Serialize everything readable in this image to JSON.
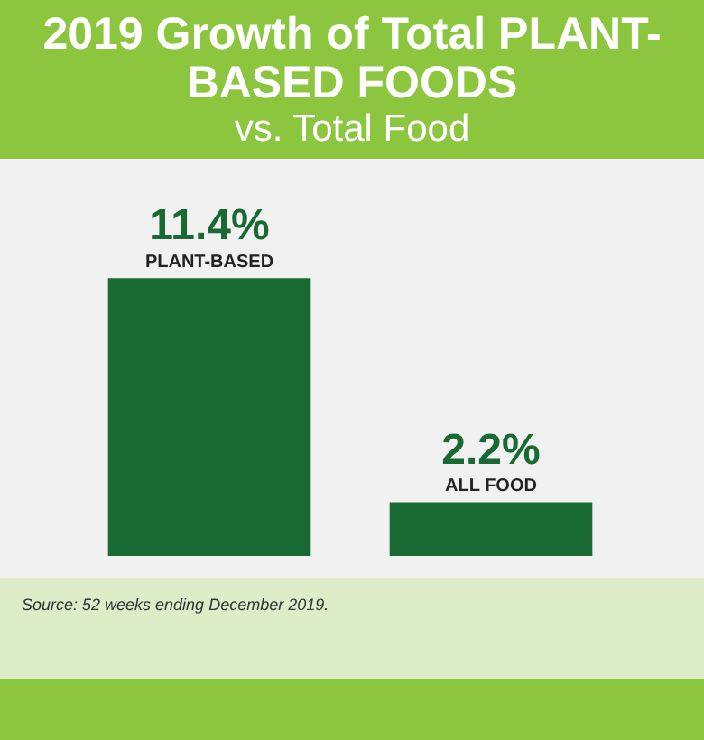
{
  "chart_data": {
    "type": "bar",
    "title": "2019 Growth of Total PLANT-BASED FOODS",
    "subtitle": "vs. Total Food",
    "categories": [
      "PLANT-BASED",
      "ALL FOOD"
    ],
    "values": [
      11.4,
      2.2
    ],
    "value_labels": [
      "11.4%",
      "2.2%"
    ],
    "color": "#186a32",
    "annotations": [
      "Source: 52 weeks ending December 2019."
    ]
  }
}
